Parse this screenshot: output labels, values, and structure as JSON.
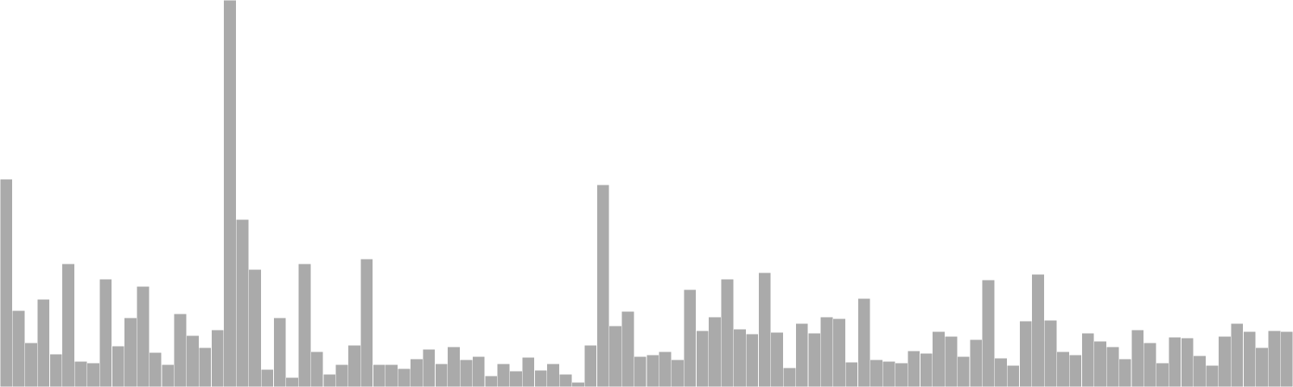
{
  "chart_data": {
    "type": "bar",
    "title": "",
    "xlabel": "",
    "ylabel": "",
    "ylim": [
      0,
      480
    ],
    "grid": false,
    "legend": "none",
    "bar_color": "#aaaaaa",
    "bar_edge_color": "#ffffff",
    "values": [
      258,
      95,
      55,
      109,
      41,
      153,
      32,
      30,
      134,
      51,
      86,
      125,
      43,
      28,
      91,
      64,
      49,
      71,
      480,
      208,
      146,
      22,
      86,
      12,
      153,
      44,
      16,
      28,
      52,
      159,
      28,
      28,
      23,
      35,
      47,
      29,
      50,
      34,
      38,
      14,
      29,
      20,
      37,
      21,
      29,
      16,
      6,
      52,
      251,
      76,
      94,
      38,
      40,
      44,
      34,
      121,
      70,
      87,
      134,
      72,
      66,
      142,
      68,
      24,
      79,
      67,
      87,
      85,
      31,
      110,
      34,
      32,
      30,
      45,
      42,
      69,
      63,
      38,
      59,
      133,
      36,
      27,
      82,
      140,
      83,
      44,
      40,
      67,
      57,
      50,
      35,
      71,
      55,
      30,
      62,
      61,
      39,
      27,
      63,
      79,
      69,
      49,
      70,
      69
    ]
  }
}
